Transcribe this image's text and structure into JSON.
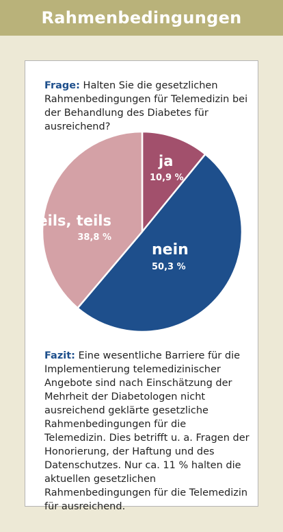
{
  "header": {
    "title": "Rahmenbedingungen"
  },
  "question": {
    "label": "Frage:",
    "text": "Halten Sie die gesetzlichen Rahmenbedingungen für Telemedizin bei der Behandlung des Diabetes für ausreichend?"
  },
  "conclusion": {
    "label": "Fazit:",
    "text": "Eine wesentliche Barriere für die Implementierung telemedizinischer Angebote sind nach Einschätzung der Mehrheit der Diabetologen nicht ausreichend geklärte gesetzliche Rahmenbedingungen für die Telemedizin. Dies betrifft u. a. Fragen der Honorierung, der Haftung und des Datenschutzes. Nur ca. 11 % halten die aktuellen gesetzlichen Rahmenbedingungen für die Telemedizin für ausreichend."
  },
  "chart_data": {
    "type": "pie",
    "slices": [
      {
        "label": "ja",
        "value": 10.9,
        "value_label": "10,9 %",
        "color": "#a2506c"
      },
      {
        "label": "nein",
        "value": 50.3,
        "value_label": "50,3 %",
        "color": "#1e4f8c"
      },
      {
        "label": "teils, teils",
        "value": 38.8,
        "value_label": "38,8 %",
        "color": "#d4a1a6"
      }
    ]
  }
}
